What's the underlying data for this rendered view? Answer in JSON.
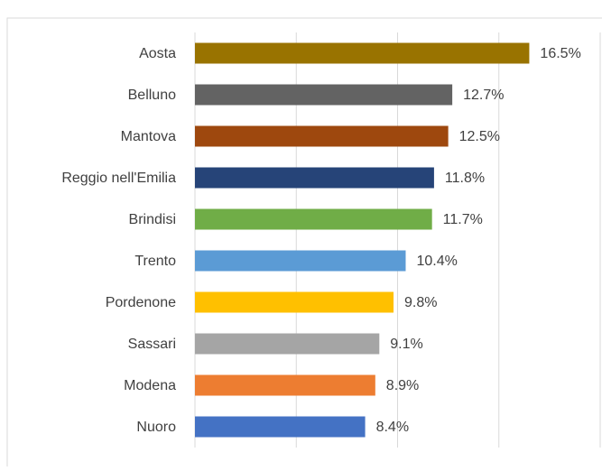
{
  "chart_data": {
    "type": "hbar",
    "categories": [
      "Aosta",
      "Belluno",
      "Mantova",
      "Reggio nell'Emilia",
      "Brindisi",
      "Trento",
      "Pordenone",
      "Sassari",
      "Modena",
      "Nuoro"
    ],
    "values": [
      16.5,
      12.7,
      12.5,
      11.8,
      11.7,
      10.4,
      9.8,
      9.1,
      8.9,
      8.4
    ],
    "value_labels": [
      "16.5%",
      "12.7%",
      "12.5%",
      "11.8%",
      "11.7%",
      "10.4%",
      "9.8%",
      "9.1%",
      "8.9%",
      "8.4%"
    ],
    "colors": [
      "#997300",
      "#636363",
      "#9e480e",
      "#264478",
      "#70ad47",
      "#5b9bd5",
      "#ffc000",
      "#a5a5a5",
      "#ed7d31",
      "#4472c4"
    ],
    "xlim": [
      0,
      20
    ],
    "xticks": [
      0,
      5,
      10,
      15,
      20
    ],
    "grid": true
  }
}
